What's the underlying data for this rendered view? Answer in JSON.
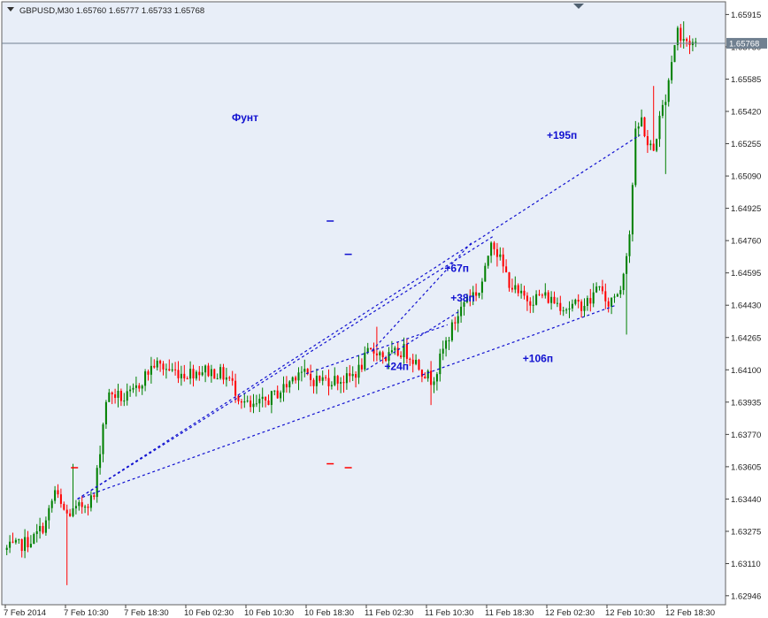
{
  "header": {
    "symbol_line": "GBPUSD,M30  1.65760 1.65777 1.65733 1.65768"
  },
  "chart_data": {
    "type": "candlestick",
    "title": "Фунт",
    "symbol": "GBPUSD",
    "timeframe": "M30",
    "ohlc_current": {
      "open": 1.6576,
      "high": 1.65777,
      "low": 1.65733,
      "close": 1.65768
    },
    "current_price_label": "1.65768",
    "current_price": 1.65768,
    "ylim": [
      1.629,
      1.6598
    ],
    "y_ticks": [
      {
        "value": 1.65915,
        "label": "1.65915"
      },
      {
        "value": 1.6575,
        "label": "1.65750"
      },
      {
        "value": 1.65585,
        "label": "1.65585"
      },
      {
        "value": 1.6542,
        "label": "1.65420"
      },
      {
        "value": 1.65255,
        "label": "1.65255"
      },
      {
        "value": 1.6509,
        "label": "1.65090"
      },
      {
        "value": 1.64925,
        "label": "1.64925"
      },
      {
        "value": 1.6476,
        "label": "1.64760"
      },
      {
        "value": 1.64595,
        "label": "1.64595"
      },
      {
        "value": 1.6443,
        "label": "1.64430"
      },
      {
        "value": 1.64265,
        "label": "1.64265"
      },
      {
        "value": 1.641,
        "label": "1.64100"
      },
      {
        "value": 1.63935,
        "label": "1.63935"
      },
      {
        "value": 1.6377,
        "label": "1.63770"
      },
      {
        "value": 1.63605,
        "label": "1.63605"
      },
      {
        "value": 1.6344,
        "label": "1.63440"
      },
      {
        "value": 1.63275,
        "label": "1.63275"
      },
      {
        "value": 1.6311,
        "label": "1.63110"
      },
      {
        "value": 1.62946,
        "label": "1.62946"
      }
    ],
    "bar_count": 230,
    "x_ticks": [
      {
        "bar": 0,
        "label": "7 Feb 2014"
      },
      {
        "bar": 20,
        "label": "7 Feb 10:30"
      },
      {
        "bar": 40,
        "label": "7 Feb 18:30"
      },
      {
        "bar": 60,
        "label": "10 Feb 02:30"
      },
      {
        "bar": 80,
        "label": "10 Feb 10:30"
      },
      {
        "bar": 100,
        "label": "10 Feb 18:30"
      },
      {
        "bar": 120,
        "label": "11 Feb 02:30"
      },
      {
        "bar": 140,
        "label": "11 Feb 10:30"
      },
      {
        "bar": 160,
        "label": "11 Feb 18:30"
      },
      {
        "bar": 180,
        "label": "12 Feb 02:30"
      },
      {
        "bar": 200,
        "label": "12 Feb 10:30"
      },
      {
        "bar": 220,
        "label": "12 Feb 18:30"
      }
    ],
    "price_path": [
      [
        0,
        1.6318
      ],
      [
        5,
        1.632
      ],
      [
        10,
        1.6324
      ],
      [
        14,
        1.6332
      ],
      [
        17,
        1.6348
      ],
      [
        19,
        1.634
      ],
      [
        21,
        1.6336
      ],
      [
        24,
        1.6338
      ],
      [
        27,
        1.6342
      ],
      [
        30,
        1.6345
      ],
      [
        32,
        1.637
      ],
      [
        34,
        1.6395
      ],
      [
        36,
        1.6398
      ],
      [
        40,
        1.6395
      ],
      [
        43,
        1.6398
      ],
      [
        46,
        1.6405
      ],
      [
        50,
        1.6413
      ],
      [
        55,
        1.641
      ],
      [
        60,
        1.6408
      ],
      [
        66,
        1.641
      ],
      [
        72,
        1.6408
      ],
      [
        75,
        1.6405
      ],
      [
        78,
        1.6397
      ],
      [
        82,
        1.639
      ],
      [
        86,
        1.6393
      ],
      [
        90,
        1.6397
      ],
      [
        94,
        1.6402
      ],
      [
        98,
        1.641
      ],
      [
        102,
        1.6405
      ],
      [
        106,
        1.6405
      ],
      [
        110,
        1.6405
      ],
      [
        114,
        1.6405
      ],
      [
        118,
        1.641
      ],
      [
        121,
        1.6418
      ],
      [
        124,
        1.642
      ],
      [
        127,
        1.6416
      ],
      [
        130,
        1.6418
      ],
      [
        133,
        1.642
      ],
      [
        136,
        1.6416
      ],
      [
        139,
        1.641
      ],
      [
        142,
        1.6405
      ],
      [
        144,
        1.641
      ],
      [
        146,
        1.642
      ],
      [
        150,
        1.6435
      ],
      [
        154,
        1.6448
      ],
      [
        158,
        1.645
      ],
      [
        160,
        1.646
      ],
      [
        162,
        1.6478
      ],
      [
        164,
        1.647
      ],
      [
        166,
        1.6462
      ],
      [
        168,
        1.6455
      ],
      [
        171,
        1.6448
      ],
      [
        175,
        1.6446
      ],
      [
        179,
        1.6448
      ],
      [
        183,
        1.6445
      ],
      [
        187,
        1.6442
      ],
      [
        191,
        1.6443
      ],
      [
        195,
        1.6445
      ],
      [
        198,
        1.6455
      ],
      [
        200,
        1.6442
      ],
      [
        203,
        1.6448
      ],
      [
        205,
        1.6452
      ],
      [
        208,
        1.648
      ],
      [
        210,
        1.653
      ],
      [
        212,
        1.6538
      ],
      [
        214,
        1.6525
      ],
      [
        216,
        1.6522
      ],
      [
        218,
        1.6538
      ],
      [
        220,
        1.655
      ],
      [
        222,
        1.6568
      ],
      [
        224,
        1.6585
      ],
      [
        225,
        1.6578
      ],
      [
        227,
        1.6578
      ],
      [
        230,
        1.65768
      ]
    ],
    "spikes": [
      {
        "bar": 20,
        "low": 1.63
      },
      {
        "bar": 22,
        "high": 1.6362
      },
      {
        "bar": 123,
        "high": 1.6432
      },
      {
        "bar": 141,
        "low": 1.6392
      },
      {
        "bar": 206,
        "low": 1.6428
      },
      {
        "bar": 215,
        "high": 1.6555
      },
      {
        "bar": 219,
        "low": 1.651
      },
      {
        "bar": 225,
        "high": 1.6588
      }
    ],
    "trend_lines": [
      {
        "from": [
          24,
          1.6344
        ],
        "to": [
          211,
          1.653
        ]
      },
      {
        "from": [
          24,
          1.6344
        ],
        "to": [
          162,
          1.6478
        ]
      },
      {
        "from": [
          24,
          1.6344
        ],
        "to": [
          203,
          1.6443
        ]
      },
      {
        "from": [
          100,
          1.6408
        ],
        "to": [
          147,
          1.6433
        ]
      },
      {
        "from": [
          120,
          1.641
        ],
        "to": [
          151,
          1.644
        ]
      },
      {
        "from": [
          122,
          1.642
        ],
        "to": [
          155,
          1.6475
        ]
      }
    ],
    "annotations": [
      {
        "text": "+195п",
        "bar": 180,
        "price": 1.6528
      },
      {
        "text": "+67п",
        "bar": 146,
        "price": 1.646
      },
      {
        "text": "+38п",
        "bar": 148,
        "price": 1.6445
      },
      {
        "text": "+24п",
        "bar": 126,
        "price": 1.641
      },
      {
        "text": "+106п",
        "bar": 172,
        "price": 1.6414
      }
    ],
    "dash_markers": [
      {
        "bar": 23,
        "price": 1.636,
        "color": "#ff0000"
      },
      {
        "bar": 108,
        "price": 1.6486,
        "color": "#1010d0"
      },
      {
        "bar": 114,
        "price": 1.6469,
        "color": "#1010d0"
      },
      {
        "bar": 108,
        "price": 1.6362,
        "color": "#ff0000"
      },
      {
        "bar": 114,
        "price": 1.636,
        "color": "#ff0000"
      }
    ],
    "colors": {
      "background": "#e8eef8",
      "bull": "#008000",
      "bear": "#ff0000",
      "trend": "#1010d0",
      "price_line": "#708090",
      "price_label_bg": "#708090",
      "price_label_fg": "#ffffff"
    }
  }
}
